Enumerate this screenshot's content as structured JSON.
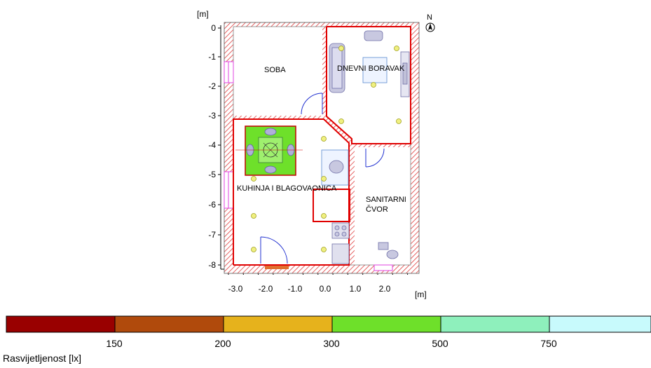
{
  "plan": {
    "axis_unit_x": "[m]",
    "axis_unit_y": "[m]",
    "north_label": "N",
    "y_ticks": [
      "0",
      "-1",
      "-2",
      "-3",
      "-4",
      "-5",
      "-6",
      "-7",
      "-8"
    ],
    "x_ticks": [
      "-3.0",
      "-2.0",
      "-1.0",
      "0.0",
      "1.0",
      "2.0"
    ],
    "rooms": {
      "soba": "SOBA",
      "dnevni_boravak": "DNEVNI BORAVAK",
      "kuhinja": "KUHINJA I BLAGOVAONICA",
      "sanitarni_line1": "SANITARNI",
      "sanitarni_line2": "ČVOR"
    }
  },
  "legend": {
    "title": "Rasvijetljenost [lx]",
    "ticks": [
      "150",
      "200",
      "300",
      "500",
      "750"
    ],
    "colors": [
      "#990000",
      "#b04a0c",
      "#e6b21c",
      "#6ee02a",
      "#8ef0bc",
      "#c8fafc"
    ]
  }
}
